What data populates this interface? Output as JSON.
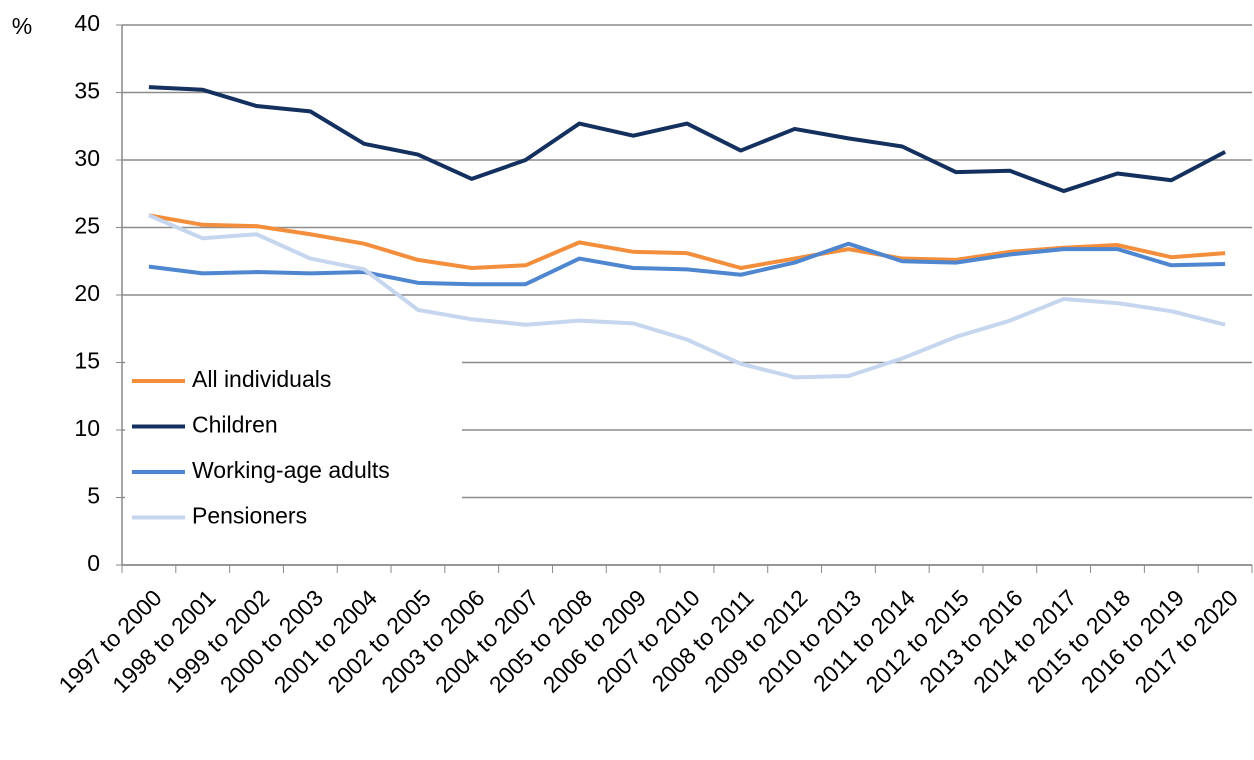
{
  "chart_data": {
    "type": "line",
    "y_label": "%",
    "categories": [
      "1997 to 2000",
      "1998 to 2001",
      "1999 to 2002",
      "2000 to 2003",
      "2001 to 2004",
      "2002 to 2005",
      "2003 to 2006",
      "2004 to 2007",
      "2005 to 2008",
      "2006 to 2009",
      "2007 to 2010",
      "2008 to 2011",
      "2009 to 2012",
      "2010 to 2013",
      "2011 to 2014",
      "2012 to 2015",
      "2013 to 2016",
      "2014 to 2017",
      "2015 to 2018",
      "2016 to 2019",
      "2017 to 2020"
    ],
    "series": [
      {
        "name": "All individuals",
        "color": "#f28e3c",
        "values": [
          25.9,
          25.2,
          25.1,
          24.5,
          23.8,
          22.6,
          22.0,
          22.2,
          23.9,
          23.2,
          23.1,
          22.0,
          22.7,
          23.4,
          22.7,
          22.6,
          23.2,
          23.5,
          23.7,
          22.8,
          23.1
        ]
      },
      {
        "name": "Children",
        "color": "#14305e",
        "values": [
          35.4,
          35.2,
          34.0,
          33.6,
          31.2,
          30.4,
          28.6,
          30.0,
          32.7,
          31.8,
          32.7,
          30.7,
          32.3,
          31.6,
          31.0,
          29.1,
          29.2,
          27.7,
          29.0,
          28.5,
          30.6
        ]
      },
      {
        "name": "Working-age adults",
        "color": "#4f86d0",
        "values": [
          22.1,
          21.6,
          21.7,
          21.6,
          21.7,
          20.9,
          20.8,
          20.8,
          22.7,
          22.0,
          21.9,
          21.5,
          22.4,
          23.8,
          22.5,
          22.4,
          23.0,
          23.4,
          23.4,
          22.2,
          22.3
        ]
      },
      {
        "name": "Pensioners",
        "color": "#c5d6ee",
        "values": [
          25.9,
          24.2,
          24.5,
          22.7,
          21.9,
          18.9,
          18.2,
          17.8,
          18.1,
          17.9,
          16.7,
          14.9,
          13.9,
          14.0,
          15.3,
          16.9,
          18.1,
          19.7,
          19.4,
          18.8,
          17.8
        ]
      }
    ],
    "ylim": [
      0,
      40
    ],
    "yticks": [
      0,
      5,
      10,
      15,
      20,
      25,
      30,
      35,
      40
    ],
    "grid": true
  }
}
